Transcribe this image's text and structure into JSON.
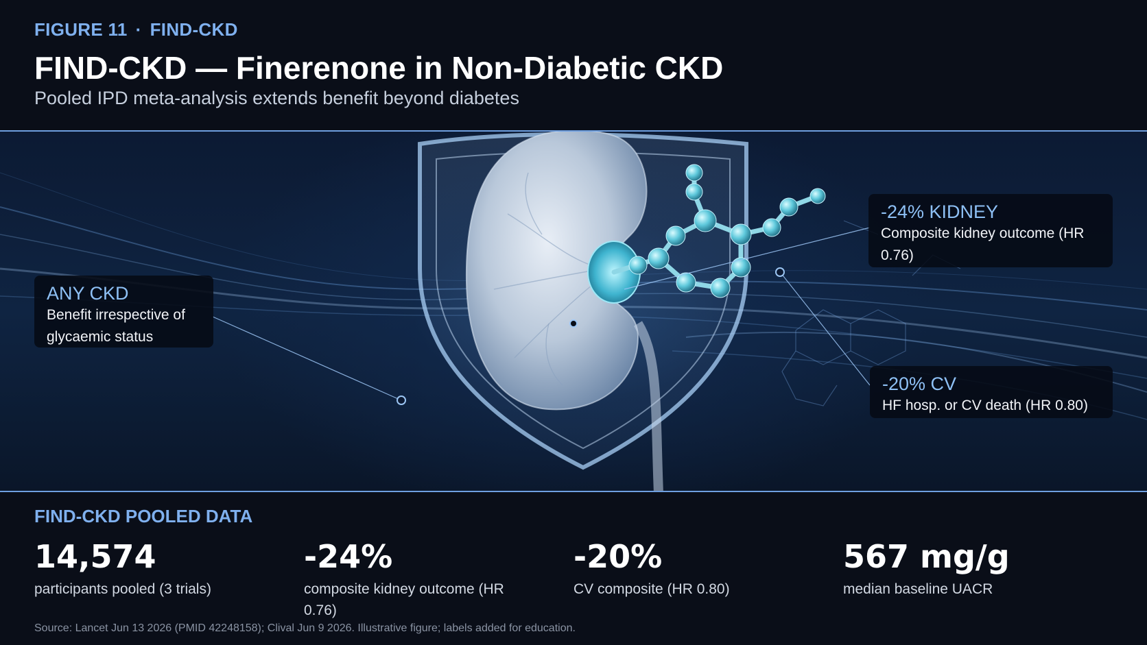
{
  "header": {
    "figure_label": "FIGURE 11",
    "separator": "·",
    "trial_tag": "FIND-CKD",
    "title": "FIND-CKD — Finerenone in Non-Diabetic CKD",
    "subtitle": "Pooled IPD meta-analysis extends benefit beyond diabetes"
  },
  "callouts": {
    "any_ckd": {
      "heading": "ANY CKD",
      "body": "Benefit irrespective of glycaemic status"
    },
    "kidney": {
      "heading": "-24% KIDNEY",
      "body": "Composite kidney outcome (HR 0.76)"
    },
    "cv": {
      "heading": "-20% CV",
      "body": "HF hosp. or CV death (HR 0.80)"
    }
  },
  "stats": {
    "title": "FIND-CKD POOLED DATA",
    "items": [
      {
        "value": "14,574",
        "label": "participants pooled (3 trials)"
      },
      {
        "value": "-24%",
        "label": "composite kidney outcome (HR 0.76)"
      },
      {
        "value": "-20%",
        "label": "CV composite (HR 0.80)"
      },
      {
        "value": "567 mg/g",
        "label": "median baseline UACR"
      }
    ]
  },
  "source": "Source: Lancet Jun 13 2026 (PMID 42248158); Clival Jun 9 2026. Illustrative figure; labels added for education.",
  "colors": {
    "accent": "#7fb0ee",
    "background": "#0a0e18",
    "callout_heading": "#8ec0f5"
  },
  "illustration": {
    "elements": [
      "shield-icon",
      "kidney-icon",
      "molecule-icon"
    ]
  }
}
